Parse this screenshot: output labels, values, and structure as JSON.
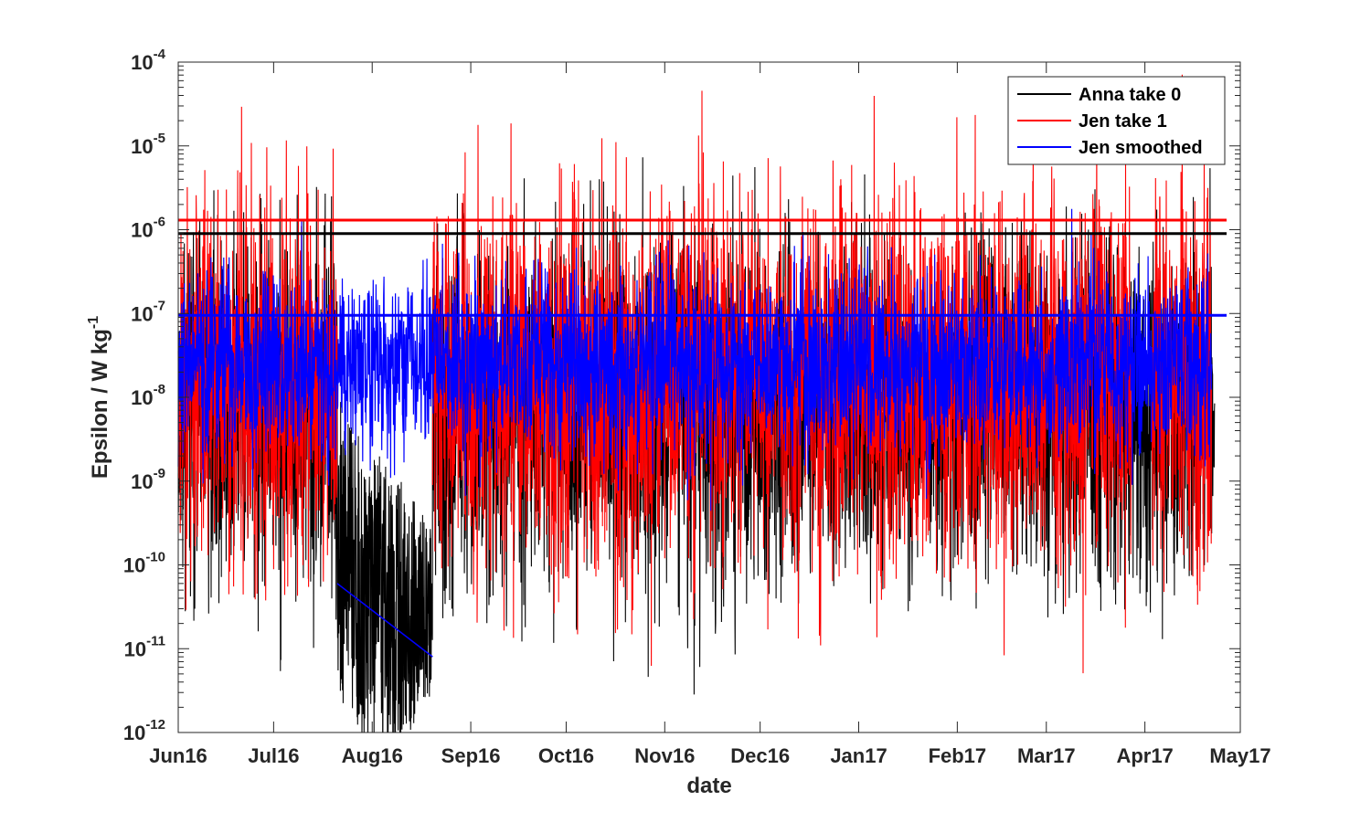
{
  "chart_data": {
    "type": "line",
    "title": "",
    "xlabel": "date",
    "ylabel": "Epsilon / W kg",
    "ylabel_superscript": "-1",
    "yscale": "log",
    "ylim": [
      "1e-12",
      "1e-4"
    ],
    "xlim": [
      "2016-06-01",
      "2017-05-01"
    ],
    "grid": false,
    "legend_position": "top-right",
    "x_tick_labels": [
      "Jun16",
      "Jul16",
      "Aug16",
      "Sep16",
      "Oct16",
      "Nov16",
      "Dec16",
      "Jan17",
      "Feb17",
      "Mar17",
      "Apr17",
      "May17"
    ],
    "y_tick_labels": [
      {
        "base": "10",
        "exp": "-12"
      },
      {
        "base": "10",
        "exp": "-11"
      },
      {
        "base": "10",
        "exp": "-10"
      },
      {
        "base": "10",
        "exp": "-9"
      },
      {
        "base": "10",
        "exp": "-8"
      },
      {
        "base": "10",
        "exp": "-7"
      },
      {
        "base": "10",
        "exp": "-6"
      },
      {
        "base": "10",
        "exp": "-5"
      },
      {
        "base": "10",
        "exp": "-4"
      }
    ],
    "series": [
      {
        "name": "Anna take 0",
        "color": "#000000",
        "x_range": [
          "2016-06-01",
          "2017-04-23"
        ],
        "typical_log10_center": -8.2,
        "typical_log10_spread": 2.6,
        "segments": [
          {
            "from": "2016-07-21",
            "to": "2016-08-20",
            "note": "low-noise decay",
            "log10_high": -8.0,
            "log10_low": -11.5
          }
        ],
        "mean": 9e-07
      },
      {
        "name": "Jen take 1",
        "color": "#ff0000",
        "x_range": [
          "2016-06-01",
          "2017-04-22"
        ],
        "typical_log10_center": -7.8,
        "typical_log10_spread": 2.8,
        "gaps": [
          [
            "2016-07-21",
            "2016-08-20"
          ],
          [
            "2017-03-28",
            "2017-04-03"
          ]
        ],
        "mean": 1.3e-06
      },
      {
        "name": "Jen smoothed",
        "color": "#0000ff",
        "x_range": [
          "2016-06-01",
          "2017-04-22"
        ],
        "typical_log10_center": -7.6,
        "typical_log10_spread": 1.4,
        "linear_segment": {
          "from": "2016-07-21",
          "to": "2016-08-20",
          "y_from": 6e-11,
          "y_to": 8e-12
        },
        "mean": 9.5e-08
      }
    ]
  }
}
